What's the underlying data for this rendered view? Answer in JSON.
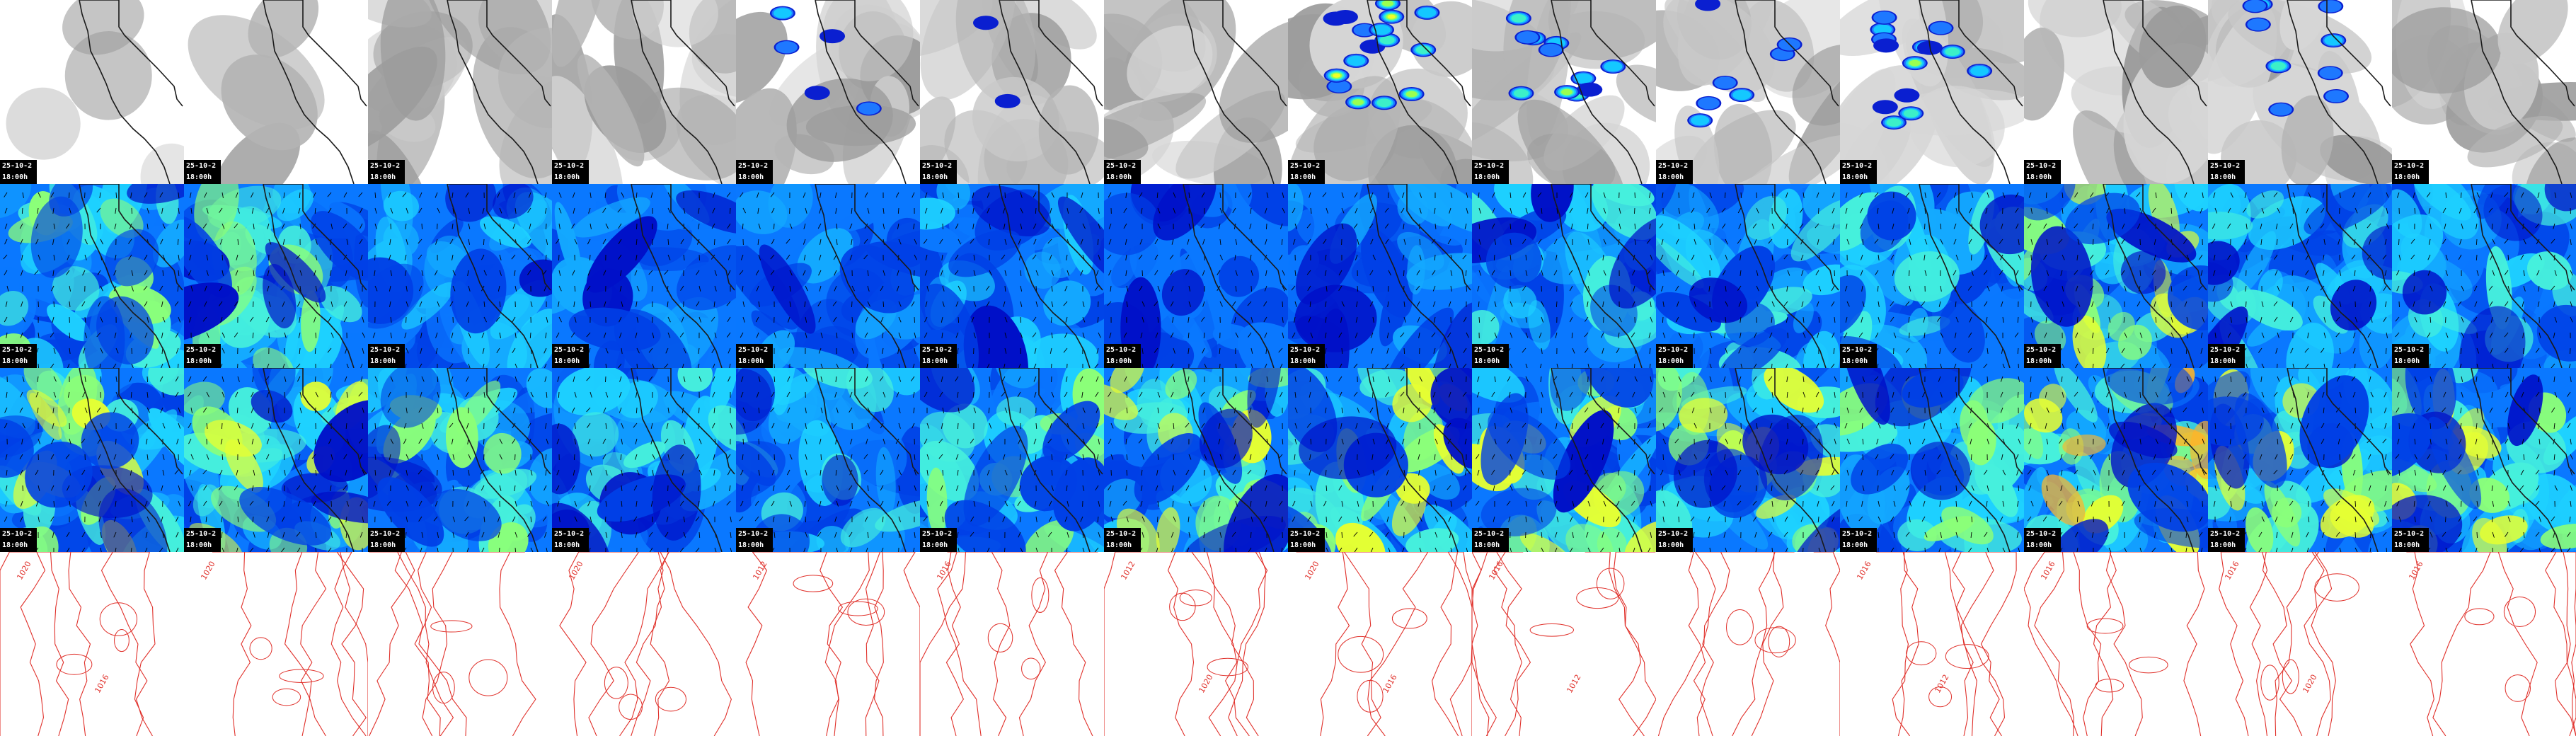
{
  "grid": {
    "columns": 14,
    "rows": 4
  },
  "colors": {
    "cloud_background": "#ffffff",
    "cloud_gray": "#a9a9a9",
    "precip_ramp": [
      "#0a1fd0",
      "#1e78ff",
      "#14c8ff",
      "#3cf0c8",
      "#9aff50",
      "#f0ff28",
      "#ffa020"
    ],
    "wind_ramp": [
      "#0010c8",
      "#0040e6",
      "#0a78ff",
      "#14aaff",
      "#1ed2ff",
      "#46f0dc",
      "#8cff78",
      "#e6ff32",
      "#ffb428"
    ],
    "border_line": "#1a1a1a",
    "isobar_line": "#e0302a",
    "stamp_bg": "#000000",
    "stamp_text": "#ffffff"
  },
  "rows": [
    {
      "field": "cloud-cover-precipitation",
      "stamps": [
        {
          "date": "25-10-2",
          "time": "18:00h"
        },
        {
          "date": "25-10-2",
          "time": "18:00h"
        },
        {
          "date": "25-10-2",
          "time": "18:00h"
        },
        {
          "date": "25-10-2",
          "time": "18:00h"
        },
        {
          "date": "25-10-2",
          "time": "18:00h"
        },
        {
          "date": "25-10-2",
          "time": "18:00h"
        },
        {
          "date": "25-10-2",
          "time": "18:00h"
        },
        {
          "date": "25-10-2",
          "time": "18:00h"
        },
        {
          "date": "25-10-2",
          "time": "18:00h"
        },
        {
          "date": "25-10-2",
          "time": "18:00h"
        },
        {
          "date": "25-10-2",
          "time": "18:00h"
        },
        {
          "date": "25-10-2",
          "time": "18:00h"
        },
        {
          "date": "25-10-2",
          "time": "18:00h"
        },
        {
          "date": "25-10-2",
          "time": "18:00h"
        }
      ],
      "precip_intensity": [
        0,
        0,
        0,
        0,
        0.3,
        0.1,
        0,
        0.9,
        0.6,
        0.4,
        0.8,
        0,
        0.5,
        0
      ]
    },
    {
      "field": "wind-speed-lower",
      "stamps": [
        {
          "date": "25-10-2",
          "time": "18:00h"
        },
        {
          "date": "25-10-2",
          "time": "18:00h"
        },
        {
          "date": "25-10-2",
          "time": "18:00h"
        },
        {
          "date": "25-10-2",
          "time": "18:00h"
        },
        {
          "date": "25-10-2",
          "time": "18:00h"
        },
        {
          "date": "25-10-2",
          "time": "18:00h"
        },
        {
          "date": "25-10-2",
          "time": "18:00h"
        },
        {
          "date": "25-10-2",
          "time": "18:00h"
        },
        {
          "date": "25-10-2",
          "time": "18:00h"
        },
        {
          "date": "25-10-2",
          "time": "18:00h"
        },
        {
          "date": "25-10-2",
          "time": "18:00h"
        },
        {
          "date": "25-10-2",
          "time": "18:00h"
        },
        {
          "date": "25-10-2",
          "time": "18:00h"
        },
        {
          "date": "25-10-2",
          "time": "18:00h"
        }
      ],
      "peak_level": [
        6,
        6,
        4,
        3,
        3,
        4,
        2,
        3,
        5,
        5,
        5,
        7,
        5,
        5
      ]
    },
    {
      "field": "wind-speed-upper",
      "stamps": [
        {
          "date": "25-10-2",
          "time": "18:00h"
        },
        {
          "date": "25-10-2",
          "time": "18:00h"
        },
        {
          "date": "25-10-2",
          "time": "18:00h"
        },
        {
          "date": "25-10-2",
          "time": "18:00h"
        },
        {
          "date": "25-10-2",
          "time": "18:00h"
        },
        {
          "date": "25-10-2",
          "time": "18:00h"
        },
        {
          "date": "25-10-2",
          "time": "18:00h"
        },
        {
          "date": "25-10-2",
          "time": "18:00h"
        },
        {
          "date": "25-10-2",
          "time": "18:00h"
        },
        {
          "date": "25-10-2",
          "time": "18:00h"
        },
        {
          "date": "25-10-2",
          "time": "18:00h"
        },
        {
          "date": "25-10-2",
          "time": "18:00h"
        },
        {
          "date": "25-10-2",
          "time": "18:00h"
        },
        {
          "date": "25-10-2",
          "time": "18:00h"
        }
      ],
      "peak_level": [
        7,
        7,
        6,
        5,
        5,
        6,
        7,
        7,
        7,
        7,
        6,
        8,
        7,
        7
      ]
    },
    {
      "field": "sea-level-pressure-isobars",
      "isobar_labels": [
        [
          "1020",
          "1016"
        ],
        [
          "1020"
        ],
        [
          ""
        ],
        [
          "1020"
        ],
        [
          "1012"
        ],
        [
          "1016"
        ],
        [
          "1012",
          "1020"
        ],
        [
          "1020",
          "1016"
        ],
        [
          "1016",
          "1012"
        ],
        [
          ""
        ],
        [
          "1016",
          "1012"
        ],
        [
          "1016"
        ],
        [
          "1016",
          "1020"
        ],
        [
          "1016"
        ]
      ]
    }
  ]
}
